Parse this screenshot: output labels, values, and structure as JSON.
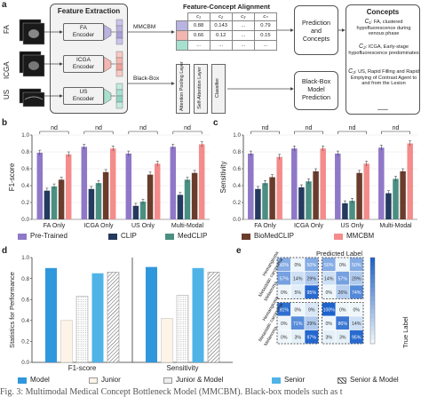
{
  "panel_a": {
    "letter": "a",
    "modalities": [
      "FA",
      "ICGA",
      "US"
    ],
    "feature_extraction_title": "Feature Extraction",
    "encoders": [
      {
        "line1": "FA",
        "line2": "Encoder",
        "color": "#b8b3e0"
      },
      {
        "line1": "ICGA",
        "line2": "Encoder",
        "color": "#f4b6b0"
      },
      {
        "line1": "US",
        "line2": "Encoder",
        "color": "#a8e0d0"
      }
    ],
    "mmcbm_label": "MMCBM",
    "blackbox_label": "Black-Box",
    "alignment_title": "Feature-Concept Alignment",
    "alignment_headers": [
      "c₁",
      "c₂",
      "c₃",
      "cₙ"
    ],
    "alignment_rows": [
      [
        "0.88",
        "0.143",
        "...",
        "0.79"
      ],
      [
        "0.66",
        "0.12",
        "...",
        "0.15"
      ],
      [
        "...",
        "...",
        "...",
        "..."
      ]
    ],
    "blackbox_layers": [
      "Attention Pooling Layer",
      "Self-Attention Layer",
      "Classifier"
    ],
    "prediction_concepts": "Prediction and Concepts",
    "blackbox_prediction": "Black-Box Model Prediction",
    "concepts_title": "Concepts",
    "concepts": [
      {
        "label": "C₁",
        "text": ": FA, clustered hypofluorescence during venous phase"
      },
      {
        "label": "C₂",
        "text": ": ICGA, Early-stage hypofluorescence predominates"
      },
      {
        "label": "C₃",
        "text": ": US, Rapid Filling and Rapid Emptying of Contrast Agent to and from the Lesion"
      }
    ],
    "concepts_more": "......"
  },
  "panel_b": {
    "letter": "b",
    "ylabel": "F1-score",
    "sig": "nd"
  },
  "panel_c": {
    "letter": "c",
    "ylabel": "Sensitivity",
    "sig": "nd"
  },
  "legend_bc": [
    "Pre-Trained",
    "CLIP",
    "MedCLIP",
    "BioMedCLIP",
    "MMCBM"
  ],
  "panel_d": {
    "letter": "d",
    "ylabel": "Statistics for Performance",
    "legend": [
      "Model",
      "Junior",
      "Junior & Model",
      "Senior",
      "Senior & Model"
    ]
  },
  "panel_e": {
    "letter": "e",
    "top_label": "Predicted Label",
    "right_label": "True Label",
    "classes": [
      "Hemangioma",
      "Metastatic carcinoma",
      "Melanoma"
    ],
    "blocks": [
      [
        [
          "50%",
          "0%",
          "50%"
        ],
        [
          "57%",
          "14%",
          "29%"
        ],
        [
          "0%",
          "5%",
          "95%"
        ]
      ],
      [
        [
          "50%",
          "0%",
          "50%"
        ],
        [
          "14%",
          "57%",
          "29%"
        ],
        [
          "0%",
          "26%",
          "74%"
        ]
      ],
      [
        [
          "91%",
          "0%",
          "9%"
        ],
        [
          "0%",
          "71%",
          "29%"
        ],
        [
          "0%",
          "3%",
          "97%"
        ]
      ],
      [
        [
          "100%",
          "0%",
          "0%"
        ],
        [
          "0%",
          "86%",
          "14%"
        ],
        [
          "3%",
          "3%",
          "95%"
        ]
      ]
    ]
  },
  "colors": {
    "pretrained": "#8f78c8",
    "clip": "#243a5e",
    "medclip": "#4a8f82",
    "biomedclip": "#6b3c2c",
    "mmcbm": "#f48c8c",
    "model": "#2f97dc",
    "senior": "#4fb3e8"
  },
  "chart_data": [
    {
      "type": "bar",
      "ylabel": "F1-score",
      "categories": [
        "FA Only",
        "ICGA Only",
        "US Only",
        "Multi-Modal"
      ],
      "ylim": [
        0,
        1.0
      ],
      "yticks": [
        0.0,
        0.2,
        0.4,
        0.6,
        0.8,
        1.0
      ],
      "series": [
        {
          "name": "Pre-Trained",
          "values": [
            0.79,
            0.86,
            0.78,
            0.86
          ]
        },
        {
          "name": "CLIP",
          "values": [
            0.34,
            0.36,
            0.16,
            0.29
          ]
        },
        {
          "name": "MedCLIP",
          "values": [
            0.39,
            0.43,
            0.21,
            0.47
          ]
        },
        {
          "name": "BioMedCLIP",
          "values": [
            0.47,
            0.56,
            0.53,
            0.55
          ]
        },
        {
          "name": "MMCBM",
          "values": [
            0.77,
            0.84,
            0.66,
            0.89
          ]
        }
      ]
    },
    {
      "type": "bar",
      "ylabel": "Sensitivity",
      "categories": [
        "FA Only",
        "ICGA Only",
        "US Only",
        "Multi-Modal"
      ],
      "ylim": [
        0,
        1.0
      ],
      "yticks": [
        0.0,
        0.2,
        0.4,
        0.6,
        0.8,
        1.0
      ],
      "series": [
        {
          "name": "Pre-Trained",
          "values": [
            0.78,
            0.84,
            0.78,
            0.85
          ]
        },
        {
          "name": "CLIP",
          "values": [
            0.36,
            0.38,
            0.19,
            0.31
          ]
        },
        {
          "name": "MedCLIP",
          "values": [
            0.43,
            0.45,
            0.22,
            0.48
          ]
        },
        {
          "name": "BioMedCLIP",
          "values": [
            0.5,
            0.57,
            0.55,
            0.57
          ]
        },
        {
          "name": "MMCBM",
          "values": [
            0.74,
            0.84,
            0.66,
            0.9
          ]
        }
      ]
    },
    {
      "type": "bar",
      "ylabel": "Statistics for Performance",
      "categories": [
        "F1-score",
        "Sensitivity"
      ],
      "ylim": [
        0,
        1.0
      ],
      "yticks": [
        0.0,
        0.2,
        0.4,
        0.6,
        0.8,
        1.0
      ],
      "series": [
        {
          "name": "Model",
          "values": [
            0.9,
            0.91
          ]
        },
        {
          "name": "Junior",
          "values": [
            0.4,
            0.42
          ]
        },
        {
          "name": "Junior & Model",
          "values": [
            0.63,
            0.64
          ]
        },
        {
          "name": "Senior",
          "values": [
            0.85,
            0.9
          ]
        },
        {
          "name": "Senior & Model",
          "values": [
            0.86,
            0.86
          ]
        }
      ]
    }
  ],
  "caption": "Fig. 3: Multimodal Medical Concept Bottleneck Model (MMCBM). Black-box models such as t"
}
